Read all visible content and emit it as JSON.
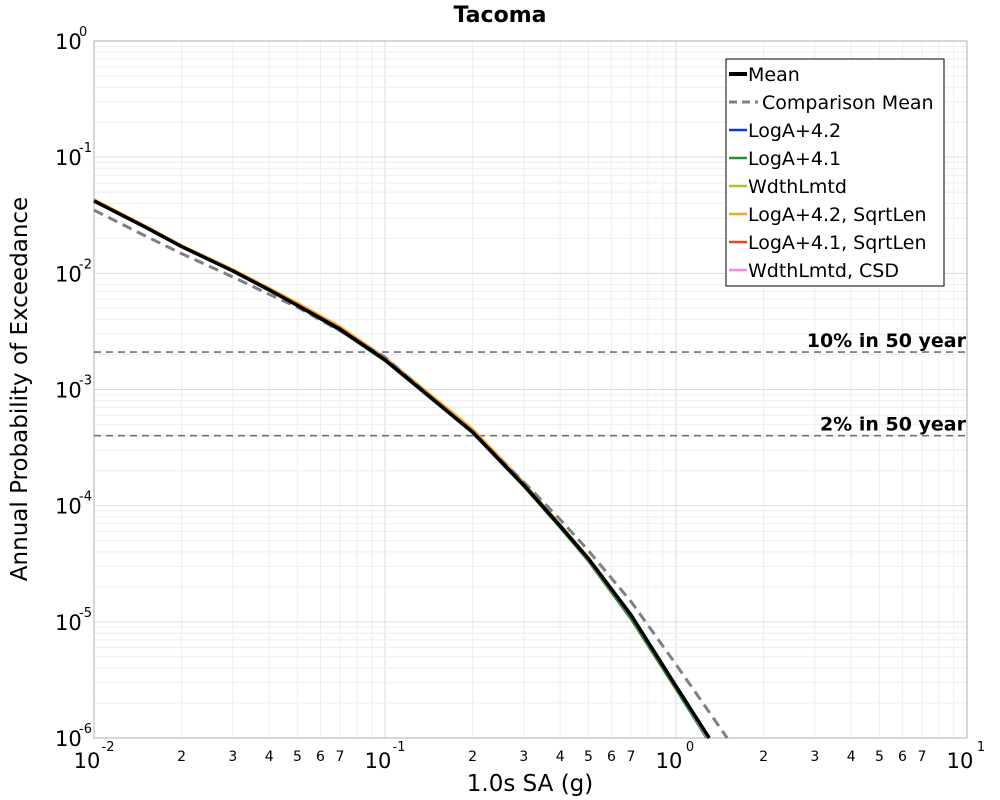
{
  "chart_data": {
    "type": "line",
    "title": "Tacoma",
    "xlabel": "1.0s SA (g)",
    "ylabel": "Annual Probability of Exceedance",
    "xscale": "log",
    "yscale": "log",
    "xlim": [
      0.01,
      10
    ],
    "ylim": [
      1e-06,
      1
    ],
    "grid": true,
    "legend_placement": "top-right",
    "x_major_ticks": [
      {
        "base": "10",
        "exp": "-2"
      },
      {
        "base": "10",
        "exp": "-1"
      },
      {
        "base": "10",
        "exp": "0"
      },
      {
        "base": "10",
        "exp": "1"
      }
    ],
    "y_major_ticks": [
      {
        "base": "10",
        "exp": "0"
      },
      {
        "base": "10",
        "exp": "-1"
      },
      {
        "base": "10",
        "exp": "-2"
      },
      {
        "base": "10",
        "exp": "-3"
      },
      {
        "base": "10",
        "exp": "-4"
      },
      {
        "base": "10",
        "exp": "-5"
      },
      {
        "base": "10",
        "exp": "-6"
      }
    ],
    "x_minor_tick_labels": [
      "2",
      "3",
      "4",
      "5",
      "6",
      "7"
    ],
    "reference_lines": [
      {
        "label": "10% in 50 year",
        "y": 0.0021
      },
      {
        "label": "2% in 50 year",
        "y": 0.0004
      }
    ],
    "series": [
      {
        "name": "Mean",
        "color": "#000000",
        "style": "solid-thick",
        "x": [
          0.01,
          0.015,
          0.02,
          0.03,
          0.04,
          0.05,
          0.07,
          0.1,
          0.15,
          0.2,
          0.3,
          0.4,
          0.5,
          0.7,
          1.0,
          1.3
        ],
        "y": [
          0.042,
          0.025,
          0.017,
          0.0105,
          0.0072,
          0.0053,
          0.0033,
          0.0018,
          0.00078,
          0.00043,
          0.00015,
          6.7e-05,
          3.5e-05,
          1.15e-05,
          2.8e-06,
          1e-06
        ]
      },
      {
        "name": "Comparison Mean",
        "color": "#808080",
        "style": "dashed",
        "x": [
          0.01,
          0.015,
          0.02,
          0.03,
          0.04,
          0.05,
          0.07,
          0.1,
          0.15,
          0.2,
          0.3,
          0.4,
          0.5,
          0.7,
          1.0,
          1.5
        ],
        "y": [
          0.035,
          0.021,
          0.0148,
          0.0093,
          0.0066,
          0.0051,
          0.0032,
          0.0019,
          0.00078,
          0.00043,
          0.00016,
          7.6e-05,
          4.1e-05,
          1.5e-05,
          4.3e-06,
          1e-06
        ]
      },
      {
        "name": "LogA+4.2",
        "color": "#1034e0",
        "style": "solid",
        "x": [
          0.01,
          0.015,
          0.02,
          0.03,
          0.04,
          0.05,
          0.07,
          0.1,
          0.15,
          0.2,
          0.3,
          0.4,
          0.5,
          0.7,
          1.0,
          1.28
        ],
        "y": [
          0.0422,
          0.0251,
          0.0171,
          0.0106,
          0.0073,
          0.0054,
          0.0034,
          0.00185,
          0.0008,
          0.00044,
          0.000152,
          6.6e-05,
          3.4e-05,
          1.1e-05,
          2.7e-06,
          1e-06
        ]
      },
      {
        "name": "LogA+4.1",
        "color": "#2e8b3c",
        "style": "solid",
        "x": [
          0.01,
          0.015,
          0.02,
          0.03,
          0.04,
          0.05,
          0.07,
          0.1,
          0.15,
          0.2,
          0.3,
          0.4,
          0.5,
          0.7,
          1.0,
          1.27
        ],
        "y": [
          0.0418,
          0.0249,
          0.0169,
          0.0104,
          0.0071,
          0.0052,
          0.0032,
          0.00175,
          0.00076,
          0.00042,
          0.000145,
          6.4e-05,
          3.3e-05,
          1.05e-05,
          2.6e-06,
          1e-06
        ]
      },
      {
        "name": "WdthLmtd",
        "color": "#9acd32",
        "style": "solid",
        "x": [
          0.01,
          0.015,
          0.02,
          0.03,
          0.04,
          0.05,
          0.07,
          0.1,
          0.15,
          0.2,
          0.3,
          0.4,
          0.5,
          0.7,
          1.0,
          1.29
        ],
        "y": [
          0.0421,
          0.025,
          0.017,
          0.0105,
          0.0072,
          0.0053,
          0.0033,
          0.0018,
          0.00078,
          0.00043,
          0.00015,
          6.6e-05,
          3.4e-05,
          1.12e-05,
          2.75e-06,
          1e-06
        ]
      },
      {
        "name": "LogA+4.2, SqrtLen",
        "color": "#f5a623",
        "style": "solid",
        "x": [
          0.01,
          0.015,
          0.02,
          0.03,
          0.04,
          0.05,
          0.07,
          0.1,
          0.15,
          0.2,
          0.3,
          0.4,
          0.5,
          0.7,
          1.0,
          1.3
        ],
        "y": [
          0.0435,
          0.0258,
          0.0175,
          0.0109,
          0.0075,
          0.0056,
          0.0035,
          0.0019,
          0.00083,
          0.00046,
          0.00016,
          6.9e-05,
          3.6e-05,
          1.17e-05,
          2.85e-06,
          1e-06
        ]
      },
      {
        "name": "LogA+4.1, SqrtLen",
        "color": "#e8431f",
        "style": "solid",
        "x": [
          0.01,
          0.015,
          0.02,
          0.03,
          0.04,
          0.05,
          0.07,
          0.1,
          0.15,
          0.2,
          0.3,
          0.4,
          0.5,
          0.7,
          1.0,
          1.29
        ],
        "y": [
          0.0425,
          0.0253,
          0.0172,
          0.0106,
          0.0073,
          0.0054,
          0.0034,
          0.00182,
          0.00079,
          0.00044,
          0.000152,
          6.7e-05,
          3.5e-05,
          1.13e-05,
          2.78e-06,
          1e-06
        ]
      },
      {
        "name": "WdthLmtd, CSD",
        "color": "#f08ce6",
        "style": "solid",
        "x": [
          0.01,
          0.015,
          0.02,
          0.03,
          0.04,
          0.05,
          0.07,
          0.1,
          0.15,
          0.2,
          0.3,
          0.4,
          0.5,
          0.7,
          1.0,
          1.28
        ],
        "y": [
          0.042,
          0.025,
          0.017,
          0.0105,
          0.0072,
          0.0053,
          0.0033,
          0.0018,
          0.00078,
          0.00043,
          0.00015,
          6.6e-05,
          3.4e-05,
          1.12e-05,
          2.75e-06,
          1e-06
        ]
      }
    ]
  }
}
